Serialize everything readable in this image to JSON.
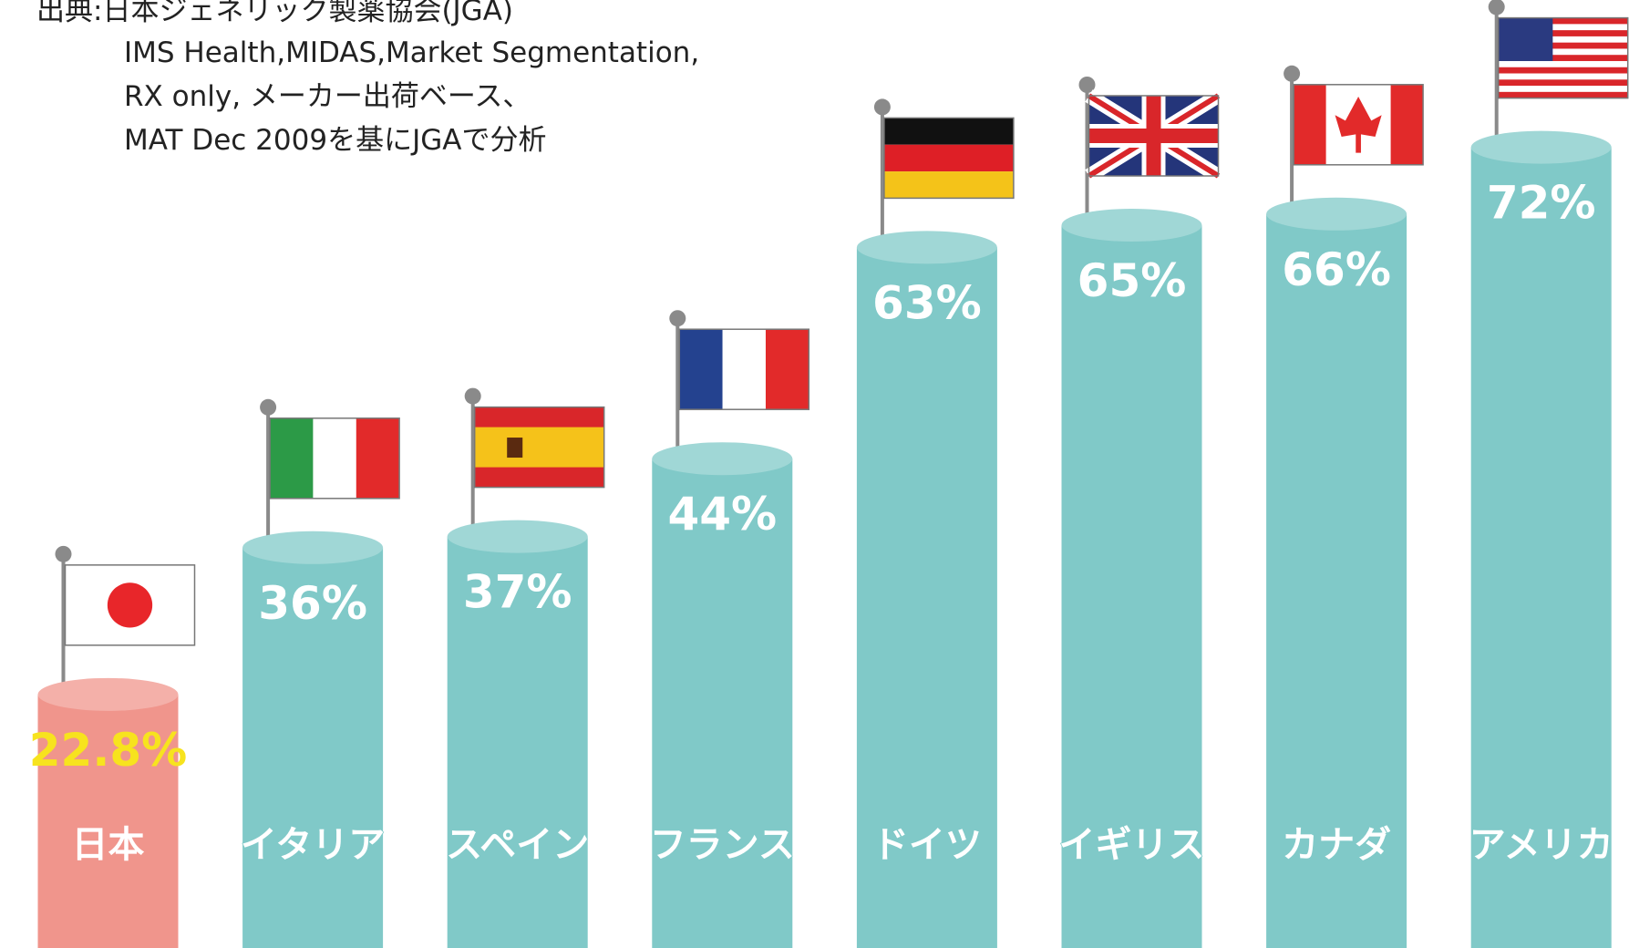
{
  "chart_data": {
    "type": "cylinder-bar",
    "source": [
      "出典:日本ジェネリック製薬協会(JGA)",
      "IMS Health,MIDAS,Market Segmentation,",
      "RX only, メーカー出荷ベース、",
      "MAT Dec 2009を基にJGAで分析"
    ],
    "categories": [
      "日本",
      "イタリア",
      "スペイン",
      "フランス",
      "ドイツ",
      "イギリス",
      "カナダ",
      "アメリカ"
    ],
    "values": [
      22.8,
      36,
      37,
      44,
      63,
      65,
      66,
      72
    ],
    "value_labels": [
      "22.8%",
      "36%",
      "37%",
      "44%",
      "63%",
      "65%",
      "66%",
      "72%"
    ],
    "colors": [
      "#f0958c",
      "#80c9c8",
      "#80c9c8",
      "#80c9c8",
      "#80c9c8",
      "#80c9c8",
      "#80c9c8",
      "#80c9c8"
    ],
    "value_label_colors": [
      "#f7e31e",
      "#ffffff",
      "#ffffff",
      "#ffffff",
      "#ffffff",
      "#ffffff",
      "#ffffff",
      "#ffffff"
    ]
  }
}
